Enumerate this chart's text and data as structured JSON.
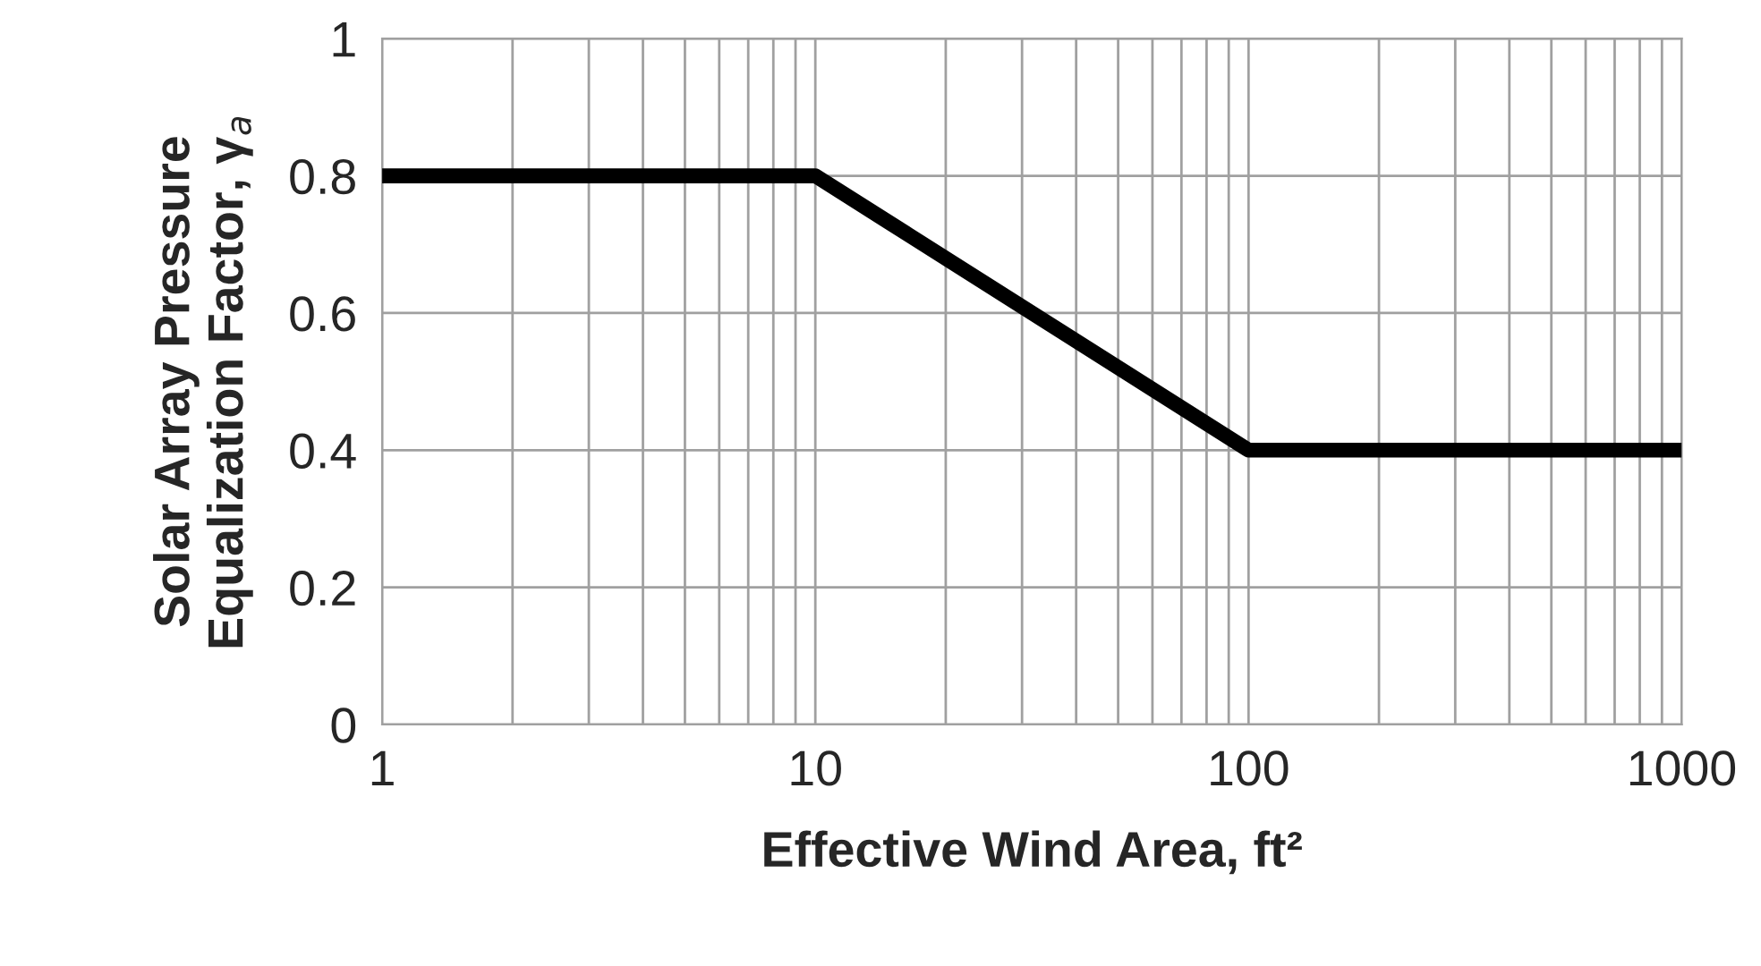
{
  "chart_data": {
    "type": "line",
    "xlabel": "Effective Wind Area, ft²",
    "ylabel": "Solar Array Pressure\nEqualization Factor, γ$_{a}$",
    "x": [
      1,
      10,
      100,
      1000
    ],
    "series": [
      {
        "color": "#000000",
        "values": [
          0.8,
          0.8,
          0.4,
          0.4
        ]
      }
    ],
    "log": "x",
    "xlim": [
      1,
      1000
    ],
    "xticks": [
      1,
      10,
      100,
      1000
    ],
    "ylim": [
      0,
      1
    ],
    "yticks": [
      0,
      0.2,
      0.4,
      0.6,
      0.8,
      1
    ],
    "grid": true,
    "marker": "none",
    "line_style": "solid"
  }
}
